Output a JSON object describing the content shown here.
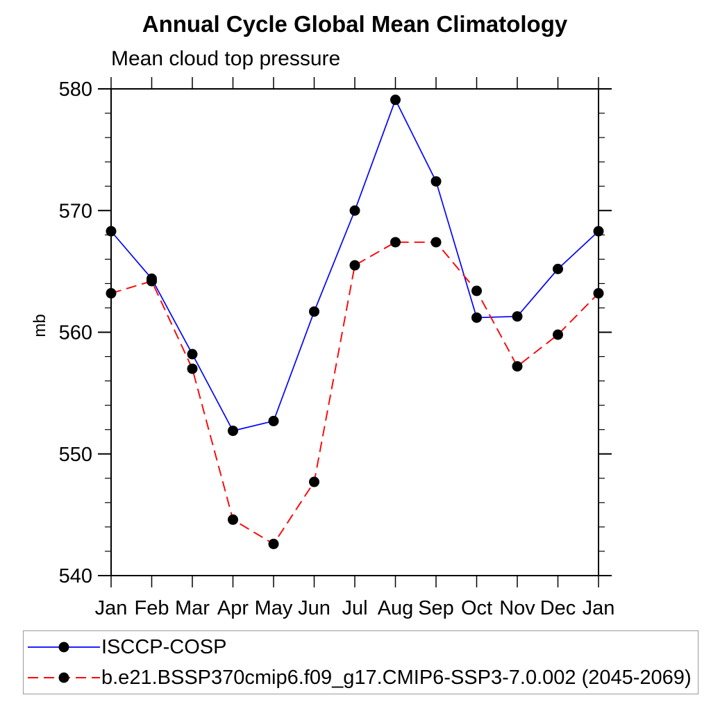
{
  "chart_data": {
    "type": "line",
    "title": "Annual Cycle Global Mean Climatology",
    "subtitle": "Mean cloud top pressure",
    "ylabel": "mb",
    "xlabel": "",
    "ylim": [
      540,
      580
    ],
    "y_major_ticks": [
      540,
      550,
      560,
      570,
      580
    ],
    "y_minor_step": 2,
    "grid": "off",
    "categories": [
      "Jan",
      "Feb",
      "Mar",
      "Apr",
      "May",
      "Jun",
      "Jul",
      "Aug",
      "Sep",
      "Oct",
      "Nov",
      "Dec",
      "Jan"
    ],
    "series": [
      {
        "name": "ISCCP-COSP",
        "color": "#0000ff",
        "line_style": "solid",
        "marker": "black-dot",
        "values": [
          568.3,
          564.4,
          558.2,
          551.9,
          552.7,
          561.7,
          570.0,
          579.1,
          572.4,
          561.2,
          561.3,
          565.2,
          568.3
        ]
      },
      {
        "name": "b.e21.BSSP370cmip6.f09_g17.CMIP6-SSP3-7.0.002 (2045-2069)",
        "color": "#ff0000",
        "line_style": "dashed",
        "marker": "black-dot",
        "values": [
          563.2,
          564.2,
          557.0,
          544.6,
          542.6,
          547.7,
          565.5,
          567.4,
          567.4,
          563.4,
          557.2,
          559.8,
          563.2
        ]
      }
    ],
    "legend_position": "bottom",
    "marker_color": "#000000",
    "axis_color": "#000000",
    "legend_border_color": "#999999"
  }
}
